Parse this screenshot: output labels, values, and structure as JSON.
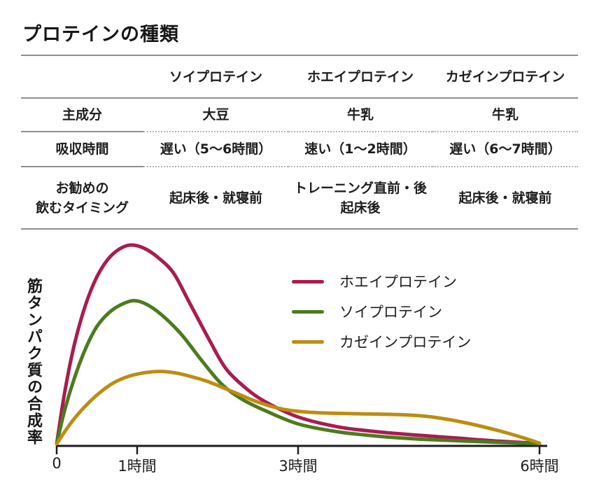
{
  "title": "プロテインの種類",
  "table": {
    "col_headers": [
      "ソイプロテイン",
      "ホエイプロテイン",
      "カゼインプロテイン"
    ],
    "rows": [
      {
        "label_lines": [
          "主成分"
        ],
        "cells": [
          [
            "大豆"
          ],
          [
            "牛乳"
          ],
          [
            "牛乳"
          ]
        ]
      },
      {
        "label_lines": [
          "吸収時間"
        ],
        "cells": [
          [
            "遅い（5〜6時間）"
          ],
          [
            "速い（1〜2時間）"
          ],
          [
            "遅い（6〜7時間）"
          ]
        ]
      },
      {
        "label_lines": [
          "お勧めの",
          "飲むタイミング"
        ],
        "cells": [
          [
            "起床後・就寝前"
          ],
          [
            "トレーニング直前・後",
            "起床後"
          ],
          [
            "起床後・就寝前"
          ]
        ]
      }
    ]
  },
  "chart": {
    "y_axis_label": "筋タンパク質の合成率",
    "x_ticks": [
      {
        "t": 0,
        "label": "0"
      },
      {
        "t": 1,
        "label": "1時間"
      },
      {
        "t": 3,
        "label": "3時間"
      },
      {
        "t": 6,
        "label": "6時間"
      }
    ],
    "axis_color": "#1c1c1c"
  },
  "chart_data": {
    "type": "line",
    "title": "",
    "xlabel": "",
    "ylabel": "筋タンパク質の合成率",
    "x_unit": "hours",
    "xlim": [
      0,
      6
    ],
    "ylim": [
      0,
      100
    ],
    "grid": false,
    "legend_position": "inside-upper-middle",
    "x_tick_values": [
      0,
      1,
      3,
      6
    ],
    "x_tick_labels": [
      "0",
      "1時間",
      "3時間",
      "6時間"
    ],
    "series": [
      {
        "name": "ホエイプロテイン",
        "color": "#A91C50",
        "points": [
          [
            0,
            0
          ],
          [
            0.1,
            26
          ],
          [
            0.22,
            50
          ],
          [
            0.36,
            70
          ],
          [
            0.5,
            84
          ],
          [
            0.64,
            93
          ],
          [
            0.78,
            98
          ],
          [
            0.92,
            100
          ],
          [
            1.08,
            98.5
          ],
          [
            1.25,
            94
          ],
          [
            1.45,
            86
          ],
          [
            1.65,
            71
          ],
          [
            1.9,
            52
          ],
          [
            2.1,
            38
          ],
          [
            2.35,
            28
          ],
          [
            2.6,
            21
          ],
          [
            3.0,
            13.5
          ],
          [
            3.5,
            8.5
          ],
          [
            4.0,
            6
          ],
          [
            4.5,
            4.3
          ],
          [
            5.0,
            2.8
          ],
          [
            5.5,
            1.3
          ],
          [
            6.0,
            0.2
          ]
        ]
      },
      {
        "name": "ソイプロテイン",
        "color": "#4C7B1E",
        "points": [
          [
            0,
            0
          ],
          [
            0.1,
            17
          ],
          [
            0.22,
            33
          ],
          [
            0.36,
            48
          ],
          [
            0.5,
            59
          ],
          [
            0.65,
            66
          ],
          [
            0.8,
            70
          ],
          [
            0.95,
            72
          ],
          [
            1.1,
            70.5
          ],
          [
            1.3,
            65
          ],
          [
            1.55,
            55
          ],
          [
            1.8,
            42
          ],
          [
            2.05,
            30
          ],
          [
            2.3,
            22.5
          ],
          [
            2.6,
            16.5
          ],
          [
            3.0,
            10
          ],
          [
            3.5,
            6
          ],
          [
            4.0,
            3.8
          ],
          [
            4.5,
            2.4
          ],
          [
            5.0,
            1.5
          ],
          [
            5.5,
            0.7
          ],
          [
            6.0,
            0.1
          ]
        ]
      },
      {
        "name": "カゼインプロテイン",
        "color": "#BC8D10",
        "points": [
          [
            0,
            0
          ],
          [
            0.15,
            9
          ],
          [
            0.3,
            16.5
          ],
          [
            0.5,
            24.5
          ],
          [
            0.7,
            30.5
          ],
          [
            0.9,
            34
          ],
          [
            1.1,
            35.8
          ],
          [
            1.3,
            36.4
          ],
          [
            1.5,
            35.5
          ],
          [
            1.7,
            33.5
          ],
          [
            1.9,
            31
          ],
          [
            2.2,
            26
          ],
          [
            2.5,
            21
          ],
          [
            2.8,
            17.5
          ],
          [
            3.1,
            16
          ],
          [
            3.5,
            15.3
          ],
          [
            3.9,
            15
          ],
          [
            4.3,
            14.6
          ],
          [
            4.6,
            13.8
          ],
          [
            4.9,
            12
          ],
          [
            5.2,
            9.5
          ],
          [
            5.5,
            6.5
          ],
          [
            5.8,
            3
          ],
          [
            6.0,
            0.3
          ]
        ]
      }
    ]
  }
}
